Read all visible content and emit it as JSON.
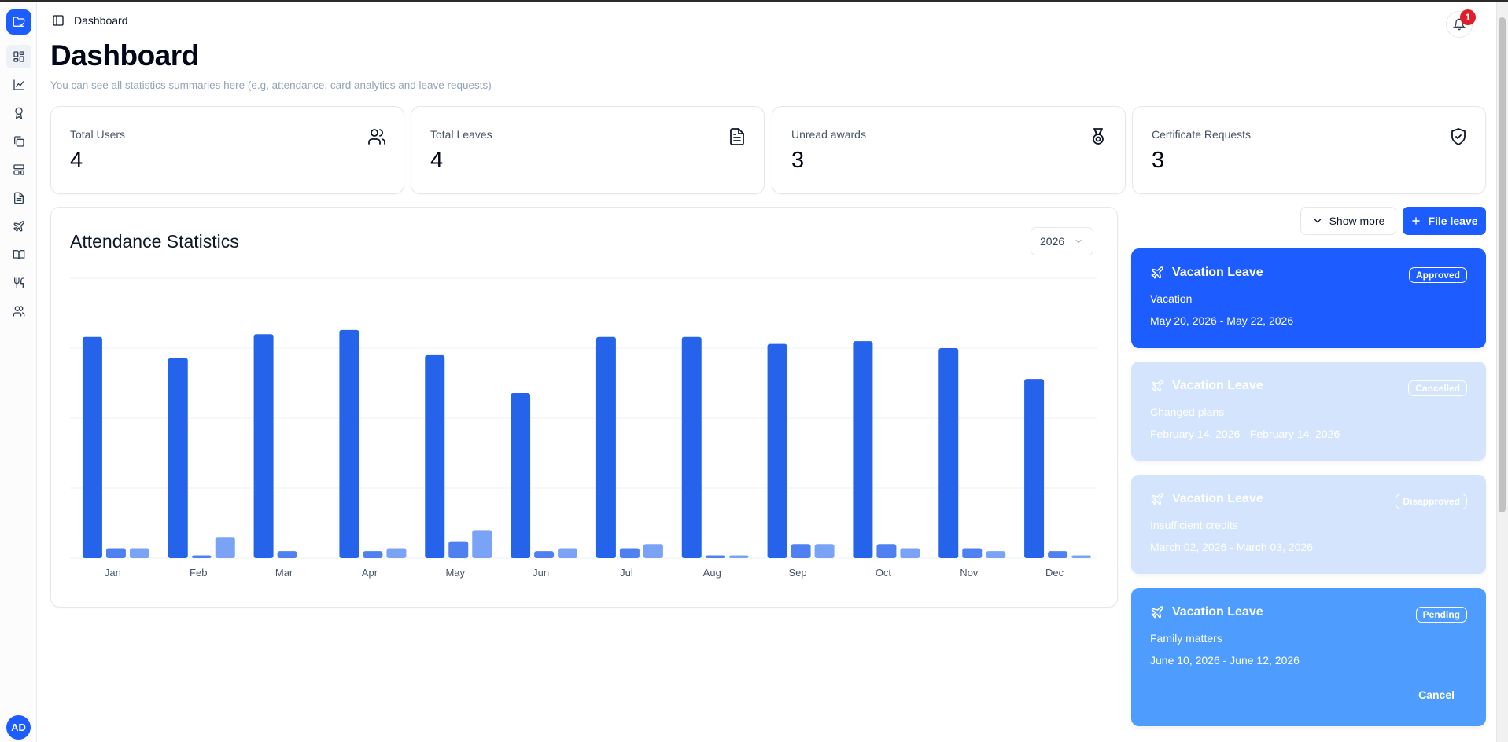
{
  "header": {
    "breadcrumb": "Dashboard",
    "notification_count": "1"
  },
  "page": {
    "title": "Dashboard",
    "subtitle": "You can see all statistics summaries here (e.g, attendance, card analytics and leave requests)"
  },
  "sidebar": {
    "items": [
      {
        "icon": "dashboard-icon",
        "active": true
      },
      {
        "icon": "line-chart-icon",
        "active": false
      },
      {
        "icon": "award-icon",
        "active": false
      },
      {
        "icon": "copy-files-icon",
        "active": false
      },
      {
        "icon": "layout-template-icon",
        "active": false
      },
      {
        "icon": "file-text-icon",
        "active": false
      },
      {
        "icon": "plane-icon",
        "active": false
      },
      {
        "icon": "book-open-icon",
        "active": false
      },
      {
        "icon": "utensils-icon",
        "active": false
      },
      {
        "icon": "users-icon",
        "active": false
      }
    ],
    "avatar_initials": "AD"
  },
  "stats": [
    {
      "label": "Total Users",
      "value": "4",
      "icon": "users-icon"
    },
    {
      "label": "Total Leaves",
      "value": "4",
      "icon": "file-text-icon"
    },
    {
      "label": "Unread awards",
      "value": "3",
      "icon": "medal-icon"
    },
    {
      "label": "Certificate Requests",
      "value": "3",
      "icon": "shield-check-icon"
    }
  ],
  "attendance": {
    "title": "Attendance Statistics",
    "year": "2026"
  },
  "chart_data": {
    "type": "bar",
    "title": "Attendance Statistics",
    "categories": [
      "Jan",
      "Feb",
      "Mar",
      "Apr",
      "May",
      "Jun",
      "Jul",
      "Aug",
      "Sep",
      "Oct",
      "Nov",
      "Dec"
    ],
    "ylim": [
      0,
      20
    ],
    "grid": true,
    "colors": [
      "#2563eb",
      "#4f80f0",
      "#7aa3f5"
    ],
    "series": [
      {
        "values": [
          15.8,
          14.3,
          16.0,
          16.3,
          14.5,
          11.8,
          15.8,
          15.8,
          15.3,
          15.5,
          15.0,
          12.8
        ]
      },
      {
        "values": [
          0.7,
          0.2,
          0.5,
          0.5,
          1.2,
          0.5,
          0.7,
          0.2,
          1.0,
          1.0,
          0.7,
          0.5
        ]
      },
      {
        "values": [
          0.7,
          1.5,
          0,
          0.7,
          2.0,
          0.7,
          1.0,
          0.2,
          1.0,
          0.7,
          0.5,
          0.2
        ]
      }
    ]
  },
  "leave_actions": {
    "show_more": "Show more",
    "file_leave": "File leave"
  },
  "leaves": [
    {
      "type": "Vacation Leave",
      "status": "Approved",
      "reason": "Vacation",
      "dates": "May 20, 2026 - May 22, 2026",
      "bg": "#1d5cff",
      "opacity": "1",
      "cancel": ""
    },
    {
      "type": "Vacation Leave",
      "status": "Cancelled",
      "reason": "Changed plans",
      "dates": "February 14, 2026 - February 14, 2026",
      "bg": "#c6dcfb",
      "opacity": "0.75",
      "cancel": ""
    },
    {
      "type": "Vacation Leave",
      "status": "Disapproved",
      "reason": "Insufficient credits",
      "dates": "March 02, 2026 - March 03, 2026",
      "bg": "#c6dcfb",
      "opacity": "0.75",
      "cancel": ""
    },
    {
      "type": "Vacation Leave",
      "status": "Pending",
      "reason": "Family matters",
      "dates": "June 10, 2026 - June 12, 2026",
      "bg": "#4f9cff",
      "opacity": "1",
      "cancel": "Cancel"
    }
  ]
}
